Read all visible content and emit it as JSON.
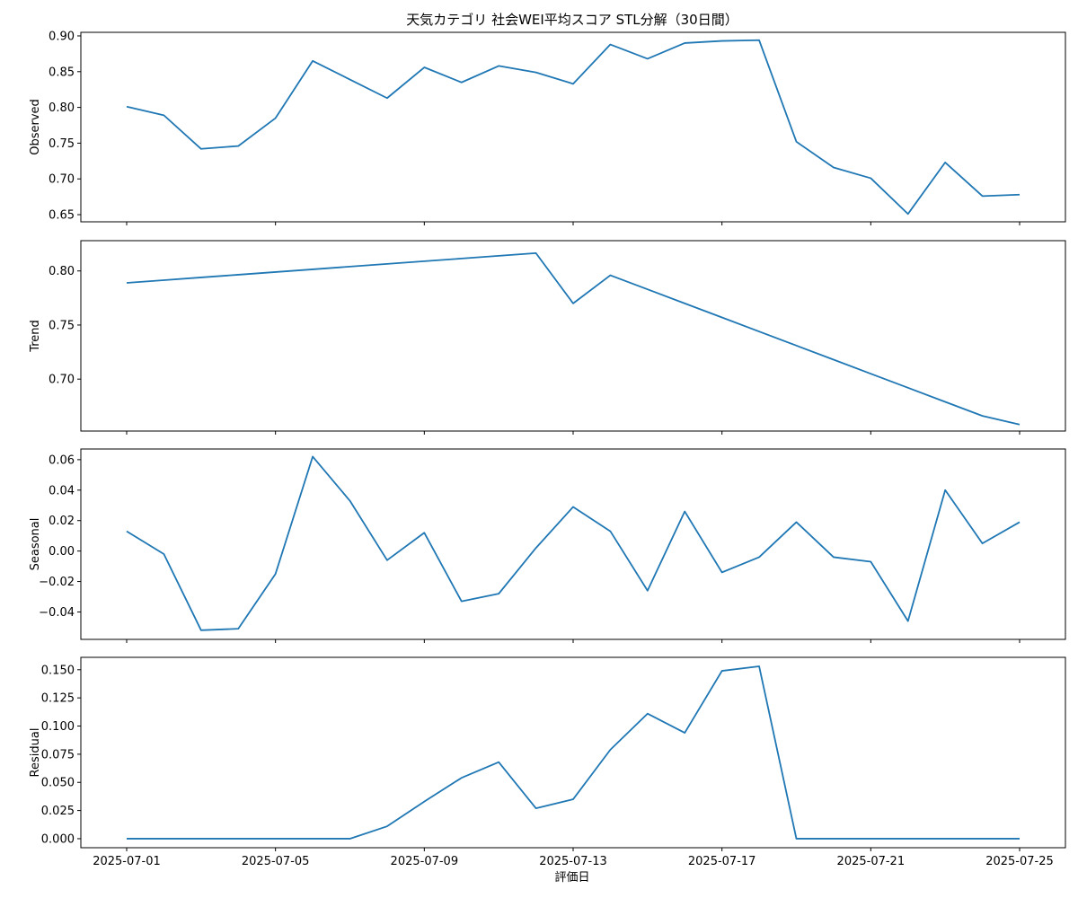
{
  "chart_data": {
    "type": "line",
    "title": "天気カテゴリ 社会WEI平均スコア STL分解（30日間）",
    "xlabel": "評価日",
    "x": [
      "2025-07-01",
      "2025-07-02",
      "2025-07-03",
      "2025-07-04",
      "2025-07-05",
      "2025-07-06",
      "2025-07-07",
      "2025-07-08",
      "2025-07-09",
      "2025-07-10",
      "2025-07-11",
      "2025-07-12",
      "2025-07-13",
      "2025-07-14",
      "2025-07-15",
      "2025-07-16",
      "2025-07-17",
      "2025-07-18",
      "2025-07-19",
      "2025-07-20",
      "2025-07-21",
      "2025-07-22",
      "2025-07-23",
      "2025-07-24",
      "2025-07-25"
    ],
    "x_tick_labels": [
      "2025-07-01",
      "2025-07-05",
      "2025-07-09",
      "2025-07-13",
      "2025-07-17",
      "2025-07-21",
      "2025-07-25"
    ],
    "line_color": "#1f77b4",
    "grid": false,
    "panels": [
      {
        "ylabel": "Observed",
        "ylim": [
          0.64,
          0.905
        ],
        "yticks": [
          "0.65",
          "0.70",
          "0.75",
          "0.80",
          "0.85",
          "0.90"
        ],
        "values": [
          0.801,
          0.789,
          0.742,
          0.746,
          0.785,
          0.865,
          0.839,
          0.813,
          0.856,
          0.835,
          0.858,
          0.849,
          0.833,
          0.888,
          0.868,
          0.89,
          0.893,
          0.894,
          0.752,
          0.716,
          0.701,
          0.651,
          0.723,
          0.676,
          0.678
        ]
      },
      {
        "ylabel": "Trend",
        "ylim": [
          0.652,
          0.828
        ],
        "yticks": [
          "0.70",
          "0.75",
          "0.80"
        ],
        "values": [
          0.789,
          0.7915,
          0.794,
          0.7965,
          0.799,
          0.8015,
          0.804,
          0.8065,
          0.809,
          0.8115,
          0.814,
          0.8165,
          0.77,
          0.796,
          0.783,
          0.77,
          0.757,
          0.744,
          0.731,
          0.718,
          0.705,
          0.692,
          0.679,
          0.666,
          0.658
        ]
      },
      {
        "ylabel": "Seasonal",
        "ylim": [
          -0.058,
          0.067
        ],
        "yticks": [
          "−0.04",
          "−0.02",
          "0.00",
          "0.02",
          "0.04",
          "0.06"
        ],
        "values": [
          0.013,
          -0.002,
          -0.052,
          -0.051,
          -0.015,
          0.062,
          0.033,
          -0.006,
          0.012,
          -0.033,
          -0.028,
          0.002,
          0.029,
          0.013,
          -0.026,
          0.026,
          -0.014,
          -0.004,
          0.019,
          -0.004,
          -0.007,
          -0.046,
          0.04,
          0.005,
          0.019
        ]
      },
      {
        "ylabel": "Residual",
        "ylim": [
          -0.008,
          0.161
        ],
        "yticks": [
          "0.000",
          "0.025",
          "0.050",
          "0.075",
          "0.100",
          "0.125",
          "0.150"
        ],
        "values": [
          0,
          0,
          0,
          0,
          0,
          0,
          0,
          0.011,
          0.033,
          0.054,
          0.068,
          0.027,
          0.035,
          0.079,
          0.111,
          0.094,
          0.149,
          0.153,
          0,
          0,
          0,
          0,
          0,
          0,
          0
        ]
      }
    ]
  }
}
